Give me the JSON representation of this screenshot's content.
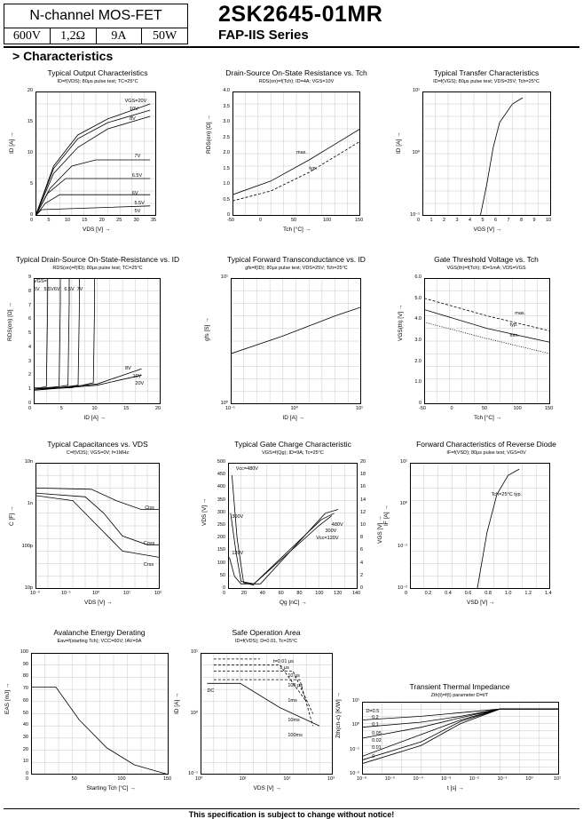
{
  "header": {
    "device_type": "N-channel MOS-FET",
    "ratings": [
      "600V",
      "1,2Ω",
      "9A",
      "50W"
    ],
    "part_number": "2SK2645-01MR",
    "series": "FAP-IIS Series"
  },
  "section_title": "> Characteristics",
  "footer": "This specification is subject to change without notice!",
  "charts": [
    {
      "title": "Typical Output Characteristics",
      "subtitle": "ID=f(VDS); 80μs pulse test; TC=25°C",
      "xlabel": "VDS [V] →",
      "ylabel": "ID [A] →",
      "xticks": [
        "0",
        "5",
        "10",
        "15",
        "20",
        "25",
        "30",
        "35"
      ],
      "yticks": [
        "0",
        "5",
        "10",
        "15",
        "20"
      ],
      "annotations": [
        "VGS=20V",
        "10V",
        "8V",
        "7V",
        "6.5V",
        "6V",
        "5.5V",
        "5V"
      ]
    },
    {
      "title": "Drain-Source On-State Resistance vs. Tch",
      "subtitle": "RDS(on)=f(Tch); ID=4A; VGS=10V",
      "xlabel": "Tch [°C] →",
      "ylabel": "RDS(on) [Ω] →",
      "xticks": [
        "-50",
        "0",
        "50",
        "100",
        "150"
      ],
      "yticks": [
        "0",
        "0.5",
        "1.0",
        "1.5",
        "2.0",
        "2.5",
        "3.0",
        "3.5",
        "4.0"
      ],
      "annotations": [
        "max.",
        "typ."
      ]
    },
    {
      "title": "Typical Transfer Characteristics",
      "subtitle": "ID=f(VGS); 80μs pulse test; VDS=25V; Tch=25°C",
      "xlabel": "VGS [V] →",
      "ylabel": "ID [A] →",
      "xticks": [
        "0",
        "1",
        "2",
        "3",
        "4",
        "5",
        "6",
        "7",
        "8",
        "9",
        "10"
      ],
      "yticks": [
        "10⁻¹",
        "10⁰",
        "10¹"
      ],
      "annotations": []
    },
    {
      "title": "Typical Drain-Source On-State-Resistance vs. ID",
      "subtitle": "RDS(on)=f(ID); 80μs pulse test; TC=25°C",
      "xlabel": "ID [A] →",
      "ylabel": "RDS(on) [Ω] →",
      "xticks": [
        "0",
        "5",
        "10",
        "15",
        "20"
      ],
      "yticks": [
        "0",
        "1",
        "2",
        "3",
        "4",
        "5",
        "6",
        "7",
        "8",
        "9"
      ],
      "annotations": [
        "VGS=",
        "5V",
        "5.5V",
        "6V",
        "6.5V",
        "7V",
        "8V",
        "10V",
        "20V"
      ]
    },
    {
      "title": "Typical Forward Transconductance vs. ID",
      "subtitle": "gfs=f(ID); 80μs pulse test; VDS=25V; Tch=25°C",
      "xlabel": "ID [A] →",
      "ylabel": "gfs [S] →",
      "xticks": [
        "10⁻¹",
        "10⁰",
        "10¹"
      ],
      "yticks": [
        "10⁰",
        "10¹"
      ],
      "annotations": []
    },
    {
      "title": "Gate Threshold Voltage vs. Tch",
      "subtitle": "VGS(th)=f(Tch); ID=1mA; VDS=VGS",
      "xlabel": "Tch [°C] →",
      "ylabel": "VGS(th) [V] →",
      "xticks": [
        "-50",
        "0",
        "50",
        "100",
        "150"
      ],
      "yticks": [
        "0",
        "1.0",
        "2.0",
        "3.0",
        "4.0",
        "5.0",
        "6.0"
      ],
      "annotations": [
        "max.",
        "typ.",
        "min."
      ]
    },
    {
      "title": "Typical Capacitances vs. VDS",
      "subtitle": "C=f(VDS); VGS=0V; f=1MHz",
      "xlabel": "VDS [V] →",
      "ylabel": "C [F] →",
      "xticks": [
        "10⁻²",
        "10⁻¹",
        "10⁰",
        "10¹",
        "10²"
      ],
      "yticks": [
        "10p",
        "100p",
        "1n",
        "10n"
      ],
      "annotations": [
        "Ciss",
        "Coss",
        "Crss"
      ]
    },
    {
      "title": "Typical Gate Charge Characteristic",
      "subtitle": "VGS=f(Qg); ID=9A; Tc=25°C",
      "xlabel": "Qg [nC] →",
      "ylabel": "VDS [V] →",
      "xticks": [
        "0",
        "20",
        "40",
        "60",
        "80",
        "100",
        "120",
        "140"
      ],
      "yticks": [
        "0",
        "50",
        "100",
        "150",
        "200",
        "250",
        "300",
        "350",
        "400",
        "450",
        "500"
      ],
      "yticks_right": [
        "0",
        "2",
        "4",
        "6",
        "8",
        "10",
        "12",
        "14",
        "16",
        "18",
        "20"
      ],
      "ylabel_right": "VGS [V] →",
      "annotations": [
        "Vcc=480V",
        "300V",
        "120V",
        "Vcc=120V",
        "300V",
        "480V"
      ]
    },
    {
      "title": "Forward Characteristics of Reverse Diode",
      "subtitle": "IF=f(VSD); 80μs pulse test; VGS=0V",
      "xlabel": "VSD [V] →",
      "ylabel": "IF [A] →",
      "xticks": [
        "0",
        "0.2",
        "0.4",
        "0.6",
        "0.8",
        "1.0",
        "1.2",
        "1.4"
      ],
      "yticks": [
        "10⁻²",
        "10⁻¹",
        "10⁰",
        "10¹"
      ],
      "annotations": [
        "Tch=25°C  typ."
      ]
    },
    {
      "title": "Avalanche Energy Derating",
      "subtitle": "Eav=f(starting Tch); VCC=60V; IAV=9A",
      "xlabel": "Starting Tch [°C] →",
      "ylabel": "EAS [mJ] →",
      "xticks": [
        "0",
        "50",
        "100",
        "150"
      ],
      "yticks": [
        "0",
        "10",
        "20",
        "30",
        "40",
        "50",
        "60",
        "70",
        "80",
        "90",
        "100"
      ],
      "annotations": []
    },
    {
      "title": "Safe Operation Area",
      "subtitle": "ID=f(VDS); D=0.01, Tc=25°C",
      "xlabel": "VDS [V] →",
      "ylabel": "ID [A] →",
      "xticks": [
        "10⁰",
        "10¹",
        "10²",
        "10³"
      ],
      "yticks": [
        "10⁻¹",
        "10⁰",
        "10¹"
      ],
      "annotations": [
        "t=0.01 μs",
        "1 μs",
        "10 μs",
        "100 μs",
        "1ms",
        "10ms",
        "100ms",
        "DC"
      ]
    },
    {
      "title": "Transient Thermal Impedance",
      "subtitle": "Zth(t)=f(t) parameter:D=t/T",
      "xlabel": "t [s] →",
      "ylabel": "Zth(ch-c) [K/W] →",
      "xticks": [
        "10⁻⁶",
        "10⁻⁵",
        "10⁻⁴",
        "10⁻³",
        "10⁻²",
        "10⁻¹",
        "10⁰",
        "10¹"
      ],
      "yticks": [
        "10⁻²",
        "10⁻¹",
        "10⁰",
        "10¹"
      ],
      "annotations": [
        "D=0.5",
        "0.2",
        "0.1",
        "0.05",
        "0.02",
        "0.01",
        "0"
      ]
    }
  ]
}
